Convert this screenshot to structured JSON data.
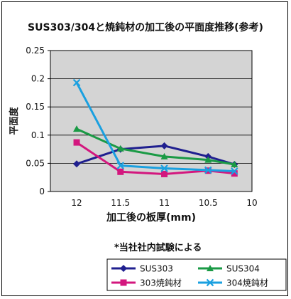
{
  "chart_data": {
    "type": "line",
    "title": "SUS303/304と焼鈍材の加工後の平面度推移(参考)",
    "xlabel": "加工後の板厚(mm)",
    "ylabel": "平面度",
    "note": "*当社社内試験による",
    "x": [
      12,
      11.5,
      11,
      10.5,
      10.2
    ],
    "xlim": [
      12.3,
      10
    ],
    "xticks": [
      12,
      11.5,
      11,
      10.5,
      10
    ],
    "xtick_labels": [
      "12",
      "11.5",
      "11",
      "10.5",
      "10"
    ],
    "ylim": [
      0,
      0.25
    ],
    "yticks": [
      0,
      0.05,
      0.1,
      0.15,
      0.2,
      0.25
    ],
    "ytick_labels": [
      "0",
      "0.05",
      "0.1",
      "0.15",
      "0.2",
      "0.25"
    ],
    "grid": "horizontal",
    "legend_position": "bottom",
    "series": [
      {
        "name": "SUS303",
        "color": "#1f1f8f",
        "marker": "diamond",
        "values": [
          0.049,
          0.075,
          0.081,
          0.062,
          0.048
        ]
      },
      {
        "name": "SUS304",
        "color": "#1a9a45",
        "marker": "triangle",
        "values": [
          0.111,
          0.076,
          0.062,
          0.056,
          0.048
        ]
      },
      {
        "name": "303焼鈍材",
        "color": "#d3177e",
        "marker": "square",
        "values": [
          0.087,
          0.035,
          0.031,
          0.037,
          0.032
        ]
      },
      {
        "name": "304焼鈍材",
        "color": "#1aa0e0",
        "marker": "x",
        "values": [
          0.193,
          0.046,
          0.041,
          0.038,
          0.036
        ]
      }
    ]
  }
}
